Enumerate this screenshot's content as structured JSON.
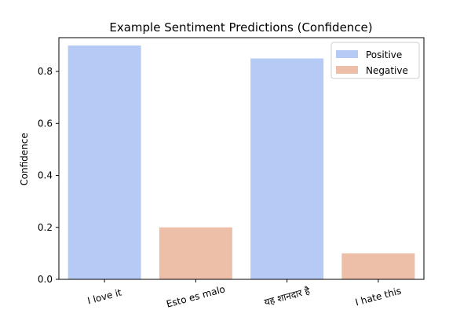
{
  "chart_data": {
    "type": "bar",
    "title": "Example Sentiment Predictions (Confidence)",
    "xlabel": "",
    "ylabel": "Confidence",
    "categories": [
      "I love it",
      "Esto es malo",
      "यह शानदार है",
      "I hate this"
    ],
    "values": [
      0.9,
      0.2,
      0.85,
      0.1
    ],
    "bar_labels": [
      "Positive",
      "Negative",
      "Positive",
      "Negative"
    ],
    "ylim": [
      0,
      0.93
    ],
    "yticks": [
      0.0,
      0.2,
      0.4,
      0.6,
      0.8
    ],
    "ytick_labels": [
      "0.0",
      "0.2",
      "0.4",
      "0.6",
      "0.8"
    ],
    "grid": false,
    "legend_placement": "top-right",
    "legend": [
      {
        "name": "Positive",
        "color": "#b5caf4"
      },
      {
        "name": "Negative",
        "color": "#edbea8"
      }
    ]
  }
}
